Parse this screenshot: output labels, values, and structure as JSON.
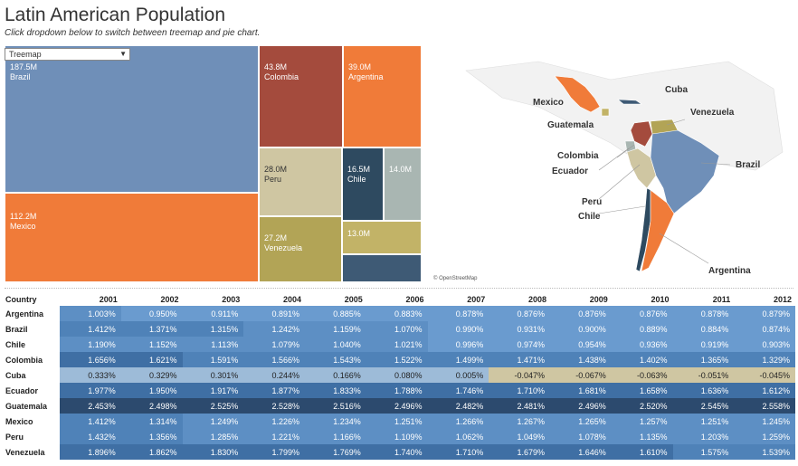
{
  "header": {
    "title": "Latin American Population",
    "subtitle": "Click dropdown below to switch between treemap and pie chart."
  },
  "dropdown": {
    "selected": "Treemap"
  },
  "colors": {
    "Brazil": "#6f8fb8",
    "Mexico": "#f07b39",
    "Colombia": "#a44b3d",
    "Argentina": "#f07b39",
    "Peru": "#cfc6a2",
    "Chile": "#2e4a60",
    "Ecuador": "#a9b6b2",
    "Venezuela": "#b2a456",
    "Guatemala": "#c2b367",
    "Cuba": "#3e5a75"
  },
  "treemap": {
    "tiles": [
      {
        "country": "Brazil",
        "value": "187.5M",
        "name": "Brazil"
      },
      {
        "country": "Mexico",
        "value": "112.2M",
        "name": "Mexico"
      },
      {
        "country": "Colombia",
        "value": "43.8M",
        "name": "Colombia"
      },
      {
        "country": "Argentina",
        "value": "39.0M",
        "name": "Argentina"
      },
      {
        "country": "Peru",
        "value": "28.0M",
        "name": "Peru"
      },
      {
        "country": "Venezuela",
        "value": "27.2M",
        "name": "Venezuela"
      },
      {
        "country": "Chile",
        "value": "16.5M",
        "name": "Chile"
      },
      {
        "country": "Ecuador",
        "value": "14.0M",
        "name": ""
      },
      {
        "country": "Guatemala",
        "value": "13.0M",
        "name": ""
      },
      {
        "country": "Cuba",
        "value": "",
        "name": ""
      }
    ]
  },
  "map": {
    "labels": {
      "mexico": "Mexico",
      "cuba": "Cuba",
      "venezuela": "Venezuela",
      "guatemala": "Guatemala",
      "colombia": "Colombia",
      "ecuador": "Ecuador",
      "brazil": "Brazil",
      "peru": "Peru",
      "chile": "Chile",
      "argentina": "Argentina"
    },
    "attribution": "© OpenStreetMap"
  },
  "table": {
    "corner": "Country",
    "years": [
      "2001",
      "2002",
      "2003",
      "2004",
      "2005",
      "2006",
      "2007",
      "2008",
      "2009",
      "2010",
      "2011",
      "2012"
    ],
    "rows": [
      {
        "country": "Argentina",
        "values": [
          "1.003%",
          "0.950%",
          "0.911%",
          "0.891%",
          "0.885%",
          "0.883%",
          "0.878%",
          "0.876%",
          "0.876%",
          "0.876%",
          "0.878%",
          "0.879%"
        ]
      },
      {
        "country": "Brazil",
        "values": [
          "1.412%",
          "1.371%",
          "1.315%",
          "1.242%",
          "1.159%",
          "1.070%",
          "0.990%",
          "0.931%",
          "0.900%",
          "0.889%",
          "0.884%",
          "0.874%"
        ]
      },
      {
        "country": "Chile",
        "values": [
          "1.190%",
          "1.152%",
          "1.113%",
          "1.079%",
          "1.040%",
          "1.021%",
          "0.996%",
          "0.974%",
          "0.954%",
          "0.936%",
          "0.919%",
          "0.903%"
        ]
      },
      {
        "country": "Colombia",
        "values": [
          "1.656%",
          "1.621%",
          "1.591%",
          "1.566%",
          "1.543%",
          "1.522%",
          "1.499%",
          "1.471%",
          "1.438%",
          "1.402%",
          "1.365%",
          "1.329%"
        ]
      },
      {
        "country": "Cuba",
        "values": [
          "0.333%",
          "0.329%",
          "0.301%",
          "0.244%",
          "0.166%",
          "0.080%",
          "0.005%",
          "-0.047%",
          "-0.067%",
          "-0.063%",
          "-0.051%",
          "-0.045%"
        ]
      },
      {
        "country": "Ecuador",
        "values": [
          "1.977%",
          "1.950%",
          "1.917%",
          "1.877%",
          "1.833%",
          "1.788%",
          "1.746%",
          "1.710%",
          "1.681%",
          "1.658%",
          "1.636%",
          "1.612%"
        ]
      },
      {
        "country": "Guatemala",
        "values": [
          "2.453%",
          "2.498%",
          "2.525%",
          "2.528%",
          "2.516%",
          "2.496%",
          "2.482%",
          "2.481%",
          "2.496%",
          "2.520%",
          "2.545%",
          "2.558%"
        ]
      },
      {
        "country": "Mexico",
        "values": [
          "1.412%",
          "1.314%",
          "1.249%",
          "1.226%",
          "1.234%",
          "1.251%",
          "1.266%",
          "1.267%",
          "1.265%",
          "1.257%",
          "1.251%",
          "1.245%"
        ]
      },
      {
        "country": "Peru",
        "values": [
          "1.432%",
          "1.356%",
          "1.285%",
          "1.221%",
          "1.166%",
          "1.109%",
          "1.062%",
          "1.049%",
          "1.078%",
          "1.135%",
          "1.203%",
          "1.259%"
        ]
      },
      {
        "country": "Venezuela",
        "values": [
          "1.896%",
          "1.862%",
          "1.830%",
          "1.799%",
          "1.769%",
          "1.740%",
          "1.710%",
          "1.679%",
          "1.646%",
          "1.610%",
          "1.575%",
          "1.539%"
        ]
      }
    ]
  }
}
